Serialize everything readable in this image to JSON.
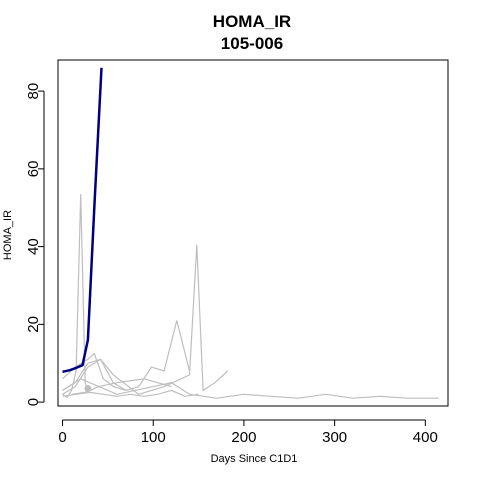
{
  "chart_data": {
    "type": "line",
    "title": "HOMA_IR",
    "subtitle": "105-006",
    "xlabel": "Days Since C1D1",
    "ylabel": "HOMA_IR",
    "xlim": [
      -5,
      425
    ],
    "ylim": [
      -1,
      88
    ],
    "xticks": [
      0,
      100,
      200,
      300,
      400
    ],
    "yticks": [
      0,
      20,
      40,
      60,
      80
    ],
    "grid": false,
    "legend": "none",
    "colors": {
      "highlight": "#000080",
      "other": "#bebebe",
      "axis": "#000000"
    },
    "highlight_series": {
      "x": [
        0,
        8,
        15,
        22,
        28,
        35,
        43
      ],
      "y": [
        7.8,
        8.2,
        8.8,
        9.5,
        16,
        50,
        86
      ]
    },
    "background_series": [
      {
        "x": [
          0,
          5,
          10,
          15,
          20,
          25,
          28
        ],
        "y": [
          2,
          1.2,
          3,
          8,
          53.5,
          5,
          3
        ]
      },
      {
        "x": [
          0,
          14,
          28,
          42,
          56,
          70,
          84,
          98,
          112,
          126,
          140
        ],
        "y": [
          2,
          4,
          9,
          11,
          5,
          3,
          4,
          9,
          8,
          21,
          8
        ]
      },
      {
        "x": [
          0,
          14,
          28,
          42,
          56,
          84,
          112,
          140,
          148,
          155,
          168,
          182
        ],
        "y": [
          3,
          5,
          10,
          11,
          7,
          2,
          4,
          7,
          40.5,
          3,
          5,
          8
        ]
      },
      {
        "x": [
          0,
          14,
          28,
          35,
          45,
          56,
          70
        ],
        "y": [
          6,
          9,
          11,
          12.5,
          6,
          4,
          3
        ]
      },
      {
        "x": [
          0,
          15,
          30,
          45,
          60,
          75,
          90,
          105,
          120,
          135,
          150
        ],
        "y": [
          1.5,
          2,
          2.5,
          2,
          1.5,
          2,
          1.5,
          2,
          3,
          1.5,
          2
        ]
      },
      {
        "x": [
          0,
          20,
          40,
          60,
          80,
          100,
          120,
          140
        ],
        "y": [
          3,
          6,
          4,
          2,
          3,
          4,
          5,
          2
        ]
      },
      {
        "x": [
          140,
          170,
          200,
          230,
          260,
          290,
          320,
          350,
          380,
          415
        ],
        "y": [
          2,
          1,
          2,
          1.5,
          1,
          2,
          1,
          1.5,
          1,
          1
        ]
      },
      {
        "x": [
          10,
          25,
          40,
          60,
          90,
          120
        ],
        "y": [
          2,
          2.5,
          4,
          5,
          6,
          4
        ]
      }
    ],
    "points": [
      {
        "x": 28,
        "y": 3.5
      }
    ]
  }
}
